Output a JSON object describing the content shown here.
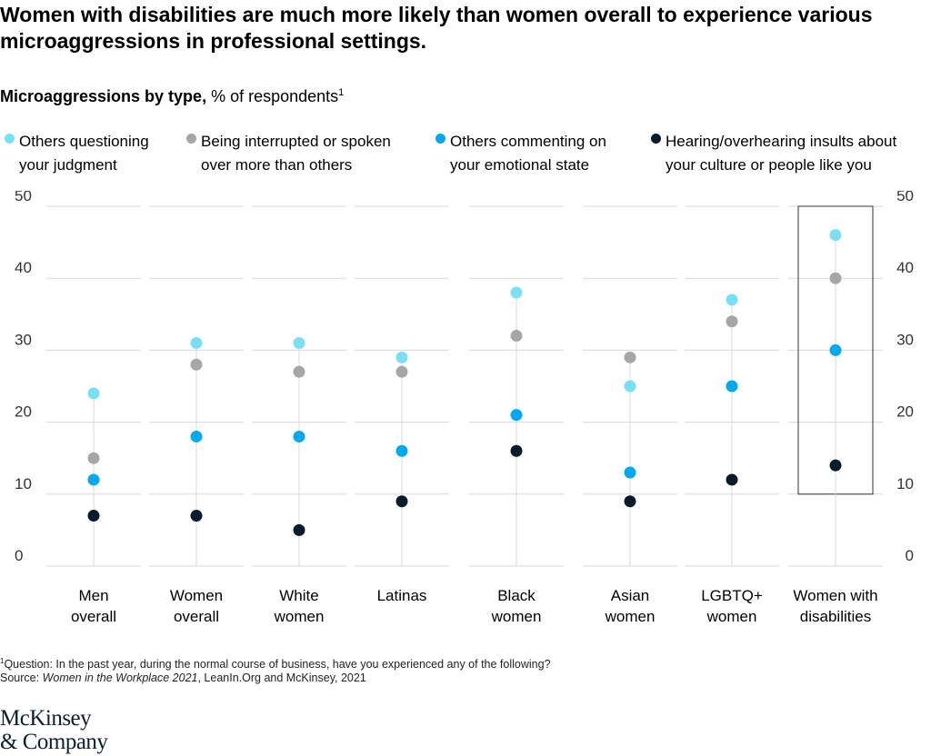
{
  "title": "Women with disabilities are much more likely than women overall to experience various microaggressions in professional settings.",
  "subtitle_bold": "Microaggressions by type,",
  "subtitle_rest": " % of respondents",
  "subtitle_sup": "1",
  "footnote_sup": "1",
  "footnote": "Question: In the past year, during the normal course of business, have you experienced any of the following?",
  "source_prefix": "Source: ",
  "source_italic": "Women in the Workplace 2021",
  "source_rest": ", LeanIn.Org and McKinsey, 2021",
  "logo_line1": "McKinsey",
  "logo_line2": "& Company",
  "colors": {
    "light_blue": "#78e0f5",
    "gray": "#a6a6a6",
    "blue": "#00a9f4",
    "navy": "#051c2c",
    "grid": "#d8d8d8",
    "highlight_box": "#333333"
  },
  "legend": [
    {
      "line1": "Others questioning",
      "line2": "your judgment",
      "color": "#78e0f5"
    },
    {
      "line1": "Being interrupted or spoken",
      "line2": "over more than others",
      "color": "#a6a6a6"
    },
    {
      "line1": "Others commenting on",
      "line2": "your emotional state",
      "color": "#00a9f4"
    },
    {
      "line1": "Hearing/overhearing insults about",
      "line2": "your culture or people like you",
      "color": "#051c2c"
    }
  ],
  "chart_data": {
    "type": "scatter",
    "ylim": [
      0,
      50
    ],
    "yticks": [
      "0",
      "10",
      "20",
      "30",
      "40",
      "50"
    ],
    "grid": "horizontal",
    "legend_position": "top",
    "highlight_category": "Women with disabilities",
    "categories": [
      {
        "line1": "Men",
        "line2": "overall"
      },
      {
        "line1": "Women",
        "line2": "overall"
      },
      {
        "line1": "White",
        "line2": "women"
      },
      {
        "line1": "Latinas",
        "line2": ""
      },
      {
        "line1": "Black",
        "line2": "women"
      },
      {
        "line1": "Asian",
        "line2": "women"
      },
      {
        "line1": "LGBTQ+",
        "line2": "women"
      },
      {
        "line1": "Women with",
        "line2": "disabilities"
      }
    ],
    "series": [
      {
        "name": "Others questioning your judgment",
        "color": "#78e0f5",
        "values": [
          24,
          31,
          31,
          29,
          38,
          25,
          37,
          46
        ]
      },
      {
        "name": "Being interrupted or spoken over more than others",
        "color": "#a6a6a6",
        "values": [
          15,
          28,
          27,
          27,
          32,
          29,
          34,
          40
        ]
      },
      {
        "name": "Others commenting on your emotional state",
        "color": "#00a9f4",
        "values": [
          12,
          18,
          18,
          16,
          21,
          13,
          25,
          30
        ]
      },
      {
        "name": "Hearing/overhearing insults about your culture or people like you",
        "color": "#051c2c",
        "values": [
          7,
          7,
          5,
          9,
          16,
          9,
          12,
          14
        ]
      }
    ]
  }
}
